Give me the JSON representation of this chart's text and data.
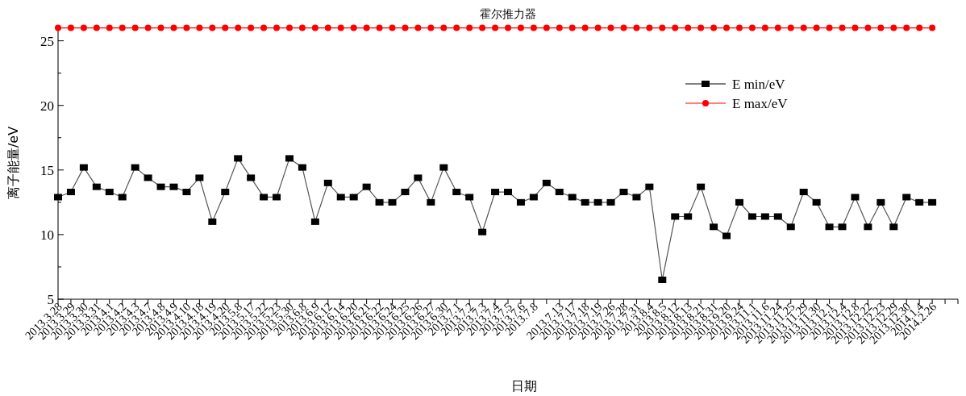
{
  "chart_data": {
    "type": "line",
    "title": "霍尔推力器",
    "xlabel": "日期",
    "ylabel": "离子能量/eV",
    "categories": [
      "2013.3.28",
      "2013.3.29",
      "2013.3.30",
      "2013.3.31",
      "2013.4.1",
      "2013.4.2",
      "2013.4.3",
      "2013.4.7",
      "2013.4.8",
      "2013.4.9",
      "2013.4.10",
      "2013.4.18",
      "2013.4.19",
      "2013.4.20",
      "2013.5.8",
      "2013.5.17",
      "2013.5.22",
      "2013.5.23",
      "2013.5.30",
      "2013.6.8",
      "2013.6.9",
      "2013.6.12",
      "2013.6.14",
      "2013.6.20",
      "2013.6.21",
      "2013.6.22",
      "2013.6.24",
      "2013.6.25",
      "2013.6.26",
      "2013.6.27",
      "2013.6.30",
      "2013.7.1",
      "2013.7.2",
      "2013.7.3",
      "2013.7.4",
      "2013.7.5",
      "2013.7.6",
      "2013.7.8",
      null,
      "2013.7.13",
      "2013.7.17",
      "2013.7.18",
      "2013.7.19",
      "2013.7.26",
      "2013.7.28",
      "2013.7.31",
      "2013.8.4",
      "2013.8.5",
      "2013.8.12",
      "2013.8.13",
      "2013.8.21",
      "2013.8.31",
      "2013.9.20",
      "2013.9.24",
      "2013.11.1",
      "2013.11.6",
      "2013.11.24",
      "2013.11.25",
      "2013.11.29",
      "2013.11.30",
      "2013.12.1",
      "2013.12.4",
      "2013.12.8",
      "2013.12.22",
      "2013.12.23",
      "2013.12.29",
      "2013.12.30",
      "2014.1.4",
      "2014.2.26"
    ],
    "series": [
      {
        "name": "E min/eV",
        "color": "#000000",
        "marker": "square",
        "values": [
          12.9,
          13.3,
          15.2,
          13.7,
          13.3,
          12.9,
          15.2,
          14.4,
          13.7,
          13.7,
          13.3,
          14.4,
          11.0,
          13.3,
          15.9,
          14.4,
          12.9,
          12.9,
          15.9,
          15.2,
          11.0,
          14.0,
          12.9,
          12.9,
          13.7,
          12.5,
          12.5,
          13.3,
          14.4,
          12.5,
          15.2,
          13.3,
          12.9,
          10.2,
          13.3,
          13.3,
          12.5,
          12.9,
          14.0,
          13.3,
          12.9,
          12.5,
          12.5,
          12.5,
          13.3,
          12.9,
          13.7,
          6.5,
          11.4,
          11.4,
          13.7,
          10.6,
          9.9,
          12.5,
          11.4,
          11.4,
          11.4,
          10.6,
          13.3,
          12.5,
          10.6,
          10.6,
          12.9,
          10.6,
          12.5,
          10.6,
          12.9,
          12.5,
          12.5
        ]
      },
      {
        "name": "E max/eV",
        "color": "#ff0000",
        "marker": "circle",
        "values": [
          26,
          26,
          26,
          26,
          26,
          26,
          26,
          26,
          26,
          26,
          26,
          26,
          26,
          26,
          26,
          26,
          26,
          26,
          26,
          26,
          26,
          26,
          26,
          26,
          26,
          26,
          26,
          26,
          26,
          26,
          26,
          26,
          26,
          26,
          26,
          26,
          26,
          26,
          26,
          26,
          26,
          26,
          26,
          26,
          26,
          26,
          26,
          26,
          26,
          26,
          26,
          26,
          26,
          26,
          26,
          26,
          26,
          26,
          26,
          26,
          26,
          26,
          26,
          26,
          26,
          26,
          26,
          26,
          26
        ]
      }
    ],
    "ylim": [
      5,
      26.1
    ],
    "yticks": [
      5,
      {
        "value": 7.5,
        "label": null
      },
      10,
      {
        "value": 12.5,
        "label": null
      },
      15,
      {
        "value": 17.5,
        "label": null
      },
      20,
      {
        "value": 22.5,
        "label": null
      },
      25
    ],
    "legend": "top right",
    "grid": false,
    "line_style": "solid"
  }
}
